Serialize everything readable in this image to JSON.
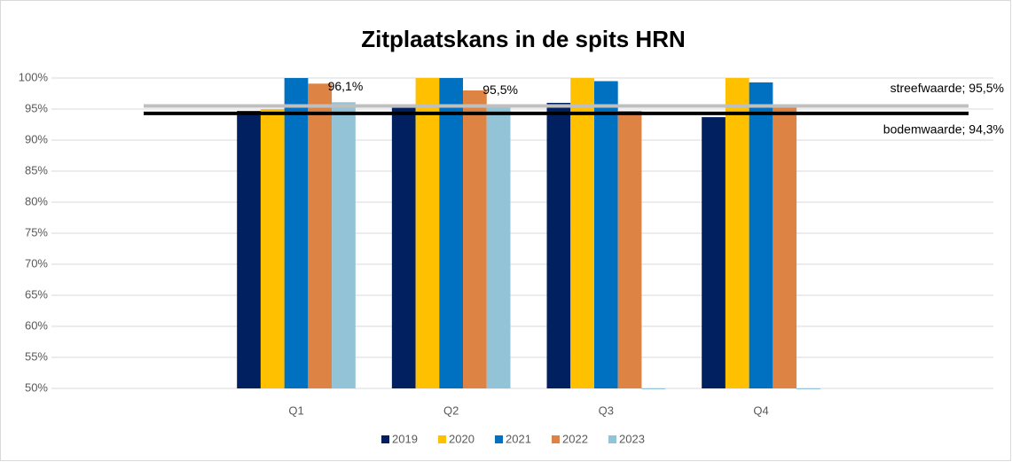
{
  "chart_data": {
    "type": "bar",
    "title": "Zitplaatskans in de spits HRN",
    "categories": [
      null,
      "Q1",
      "Q2",
      "Q3",
      "Q4",
      null
    ],
    "series": [
      {
        "name": "2019",
        "color": "#002060",
        "values": [
          null,
          94.7,
          95.2,
          96.0,
          93.7,
          null
        ]
      },
      {
        "name": "2020",
        "color": "#ffc000",
        "values": [
          null,
          95.0,
          100,
          100,
          100,
          null
        ]
      },
      {
        "name": "2021",
        "color": "#0070c0",
        "values": [
          null,
          100,
          100,
          99.5,
          99.3,
          null
        ]
      },
      {
        "name": "2022",
        "color": "#dd8444",
        "values": [
          null,
          99.1,
          98.0,
          94.7,
          95.3,
          null
        ]
      },
      {
        "name": "2023",
        "color": "#92c3d6",
        "values": [
          null,
          96.1,
          95.5,
          50,
          50,
          null
        ],
        "value_labels": [
          null,
          "96,1%",
          "95,5%",
          null,
          null,
          null
        ]
      }
    ],
    "reference_lines": [
      {
        "label": "streefwaarde; 95,5%",
        "value": 95.5,
        "color": "#bfbfbf"
      },
      {
        "label": "bodemwaarde; 94,3%",
        "value": 94.3,
        "color": "#000000"
      }
    ],
    "ylim": [
      50,
      100
    ],
    "yticks": [
      {
        "value": 50,
        "label": "50%"
      },
      {
        "value": 55,
        "label": "55%"
      },
      {
        "value": 60,
        "label": "60%"
      },
      {
        "value": 65,
        "label": "65%"
      },
      {
        "value": 70,
        "label": "70%"
      },
      {
        "value": 75,
        "label": "75%"
      },
      {
        "value": 80,
        "label": "80%"
      },
      {
        "value": 85,
        "label": "85%"
      },
      {
        "value": 90,
        "label": "90%"
      },
      {
        "value": 95,
        "label": "95%"
      },
      {
        "value": 100,
        "label": "100%"
      }
    ],
    "grid": true,
    "legend": "bottom"
  }
}
